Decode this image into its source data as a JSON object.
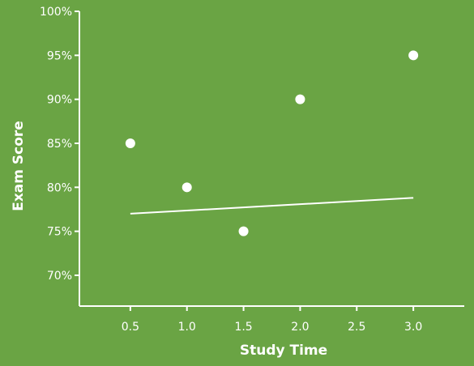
{
  "chart_data": {
    "type": "scatter",
    "title": "",
    "xlabel": "Study Time",
    "ylabel": "Exam Score",
    "x_ticks": [
      "0.5",
      "1.0",
      "1.5",
      "2.0",
      "2.5",
      "3.0"
    ],
    "y_ticks": [
      "70%",
      "75%",
      "80%",
      "85%",
      "90%",
      "95%",
      "100%"
    ],
    "xlim": [
      0.05,
      3.45
    ],
    "ylim": [
      66.5,
      100
    ],
    "grid": false,
    "points": [
      {
        "x": 0.5,
        "y": 85
      },
      {
        "x": 1.0,
        "y": 80
      },
      {
        "x": 1.5,
        "y": 75
      },
      {
        "x": 2.0,
        "y": 90
      },
      {
        "x": 3.0,
        "y": 95
      }
    ],
    "trend_line": {
      "x": [
        0.5,
        3.0
      ],
      "y": [
        77.0,
        78.8
      ]
    },
    "colors": {
      "background": "#6aa444",
      "foreground": "#ffffff"
    }
  }
}
